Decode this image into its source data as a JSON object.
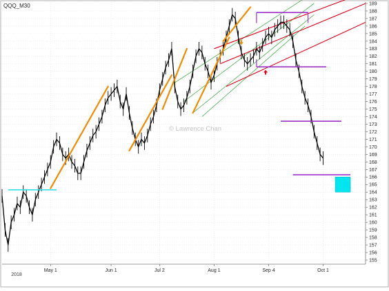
{
  "chart_data": {
    "type": "line",
    "symbol_label": "QQQ_M30",
    "watermark": "© Lawrence Chan",
    "x_tick_labels": [
      "May 1",
      "Jun 1",
      "Jul 2",
      "Aug 1",
      "Sep 4",
      "Oct 1"
    ],
    "x_sublabel": "2018",
    "y_tick_labels": [
      "155",
      "156",
      "157",
      "158",
      "159",
      "160",
      "161",
      "162",
      "163",
      "164",
      "165",
      "166",
      "167",
      "168",
      "169",
      "170",
      "171",
      "172",
      "173",
      "174",
      "175",
      "176",
      "177",
      "178",
      "179",
      "180",
      "181",
      "182",
      "183",
      "184",
      "185",
      "186",
      "187",
      "188",
      "189"
    ],
    "ylim": [
      155,
      189
    ],
    "grid": true,
    "x_index_range": [
      0,
      120
    ],
    "series": [
      {
        "values": [
          163.5,
          159.0,
          157.0,
          160.0,
          161.0,
          162.5,
          162.0,
          164.0,
          163.5,
          162.0,
          161.0,
          163.0,
          164.0,
          165.0,
          166.0,
          167.0,
          168.0,
          170.0,
          171.0,
          170.5,
          169.0,
          168.5,
          169.0,
          168.0,
          167.5,
          166.5,
          166.5,
          168.0,
          169.5,
          170.5,
          171.5,
          172.0,
          173.0,
          174.0,
          175.5,
          176.5,
          177.0,
          177.5,
          178.0,
          176.0,
          175.0,
          177.0,
          174.5,
          172.5,
          171.0,
          170.0,
          171.0,
          170.5,
          171.5,
          173.0,
          174.0,
          175.5,
          177.5,
          179.0,
          180.5,
          181.5,
          183.0,
          178.0,
          176.0,
          175.0,
          175.5,
          176.5,
          178.0,
          180.0,
          182.0,
          183.0,
          182.5,
          181.0,
          180.0,
          178.5,
          179.5,
          181.0,
          182.0,
          183.0,
          184.5,
          186.0,
          187.5,
          187.0,
          184.5,
          182.5,
          181.5,
          181.0,
          181.5,
          182.0,
          183.0,
          182.5,
          183.5,
          184.5,
          185.0,
          184.5,
          185.5,
          186.0,
          186.5,
          186.5,
          186.0,
          185.5,
          184.0,
          181.5,
          180.0,
          178.0,
          176.5,
          175.5,
          174.0,
          172.0,
          170.5,
          169.0,
          168.5
        ]
      }
    ],
    "annotations": {
      "horizontal_levels": [
        {
          "y": 164.3,
          "x0": 2,
          "x1": 18,
          "color": "#33e0e6"
        },
        {
          "y": 187.8,
          "x0": 84,
          "x1": 101,
          "color": "#9b30c8"
        },
        {
          "y": 180.6,
          "x0": 84,
          "x1": 107,
          "color": "#9b30c8"
        },
        {
          "y": 173.4,
          "x0": 92,
          "x1": 112,
          "color": "#9b30c8"
        },
        {
          "y": 166.3,
          "x0": 96,
          "x1": 115,
          "color": "#9b30c8"
        }
      ],
      "target_box": {
        "x0": 110,
        "x1": 115,
        "y0": 164.0,
        "y1": 166.0,
        "color": "#00e5ee"
      },
      "trend_segments_orange": [
        {
          "x0": 16,
          "y0": 164.5,
          "x1": 35,
          "y1": 178.0
        },
        {
          "x0": 42,
          "y0": 169.5,
          "x1": 56,
          "y1": 179.5
        },
        {
          "x0": 53,
          "y0": 175.0,
          "x1": 61,
          "y1": 183.0
        },
        {
          "x0": 63,
          "y0": 174.5,
          "x1": 75,
          "y1": 184.5
        },
        {
          "x0": 73,
          "y0": 184.0,
          "x1": 82,
          "y1": 188.5
        }
      ],
      "channel_lines_red": [
        {
          "x0": 70,
          "y0": 183.0,
          "x1": 120,
          "y1": 190.5
        },
        {
          "x0": 72,
          "y0": 181.0,
          "x1": 120,
          "y1": 189.0
        },
        {
          "x0": 74,
          "y0": 178.0,
          "x1": 120,
          "y1": 186.5
        }
      ],
      "fan_lines_green": [
        {
          "x0": 57,
          "y0": 178.5,
          "x1": 103,
          "y1": 190.5
        },
        {
          "x0": 60,
          "y0": 176.0,
          "x1": 103,
          "y1": 189.0
        },
        {
          "x0": 63,
          "y0": 174.5,
          "x1": 103,
          "y1": 187.5
        },
        {
          "x0": 66,
          "y0": 174.0,
          "x1": 100,
          "y1": 186.0
        }
      ],
      "arrows": [
        {
          "x": 87,
          "y": 180.2,
          "direction": "up",
          "color": "#e8001c"
        },
        {
          "x": 79,
          "y": 183.5,
          "direction": "down",
          "color": "#f09000"
        }
      ]
    }
  }
}
